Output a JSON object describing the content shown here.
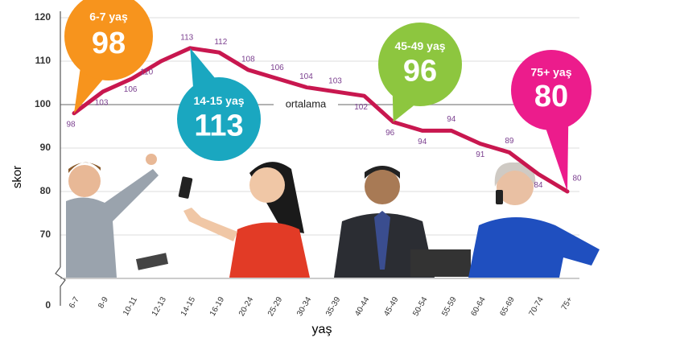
{
  "chart_data": {
    "type": "line",
    "x_label": "yaş",
    "y_label": "skor",
    "categories": [
      "6-7",
      "8-9",
      "10-11",
      "12-13",
      "14-15",
      "16-19",
      "20-24",
      "25-29",
      "30-34",
      "35-39",
      "40-44",
      "45-49",
      "50-54",
      "55-59",
      "60-64",
      "65-69",
      "70-74",
      "75+"
    ],
    "series": [
      {
        "name": "skor",
        "color": "#c8174f",
        "label_color": "#7b3f8f",
        "values": [
          98,
          103,
          106,
          110,
          113,
          112,
          108,
          106,
          104,
          103,
          102,
          96,
          94,
          94,
          91,
          89,
          84,
          80
        ]
      }
    ],
    "ylim": [
      60,
      120
    ],
    "yticks": [
      70,
      80,
      90,
      100,
      110,
      120
    ],
    "ybreak": 0,
    "grid": true,
    "reference_line": {
      "value": 100,
      "label": "ortalama"
    },
    "callouts": [
      {
        "label": "6-7 yaş",
        "value": 98,
        "color": "#f7941d"
      },
      {
        "label": "14-15 yaş",
        "value": 113,
        "color": "#1aa7c0"
      },
      {
        "label": "45-49 yaş",
        "value": 96,
        "color": "#8dc63f"
      },
      {
        "label": "75+ yaş",
        "value": 80,
        "color": "#ec1c8c"
      }
    ]
  }
}
